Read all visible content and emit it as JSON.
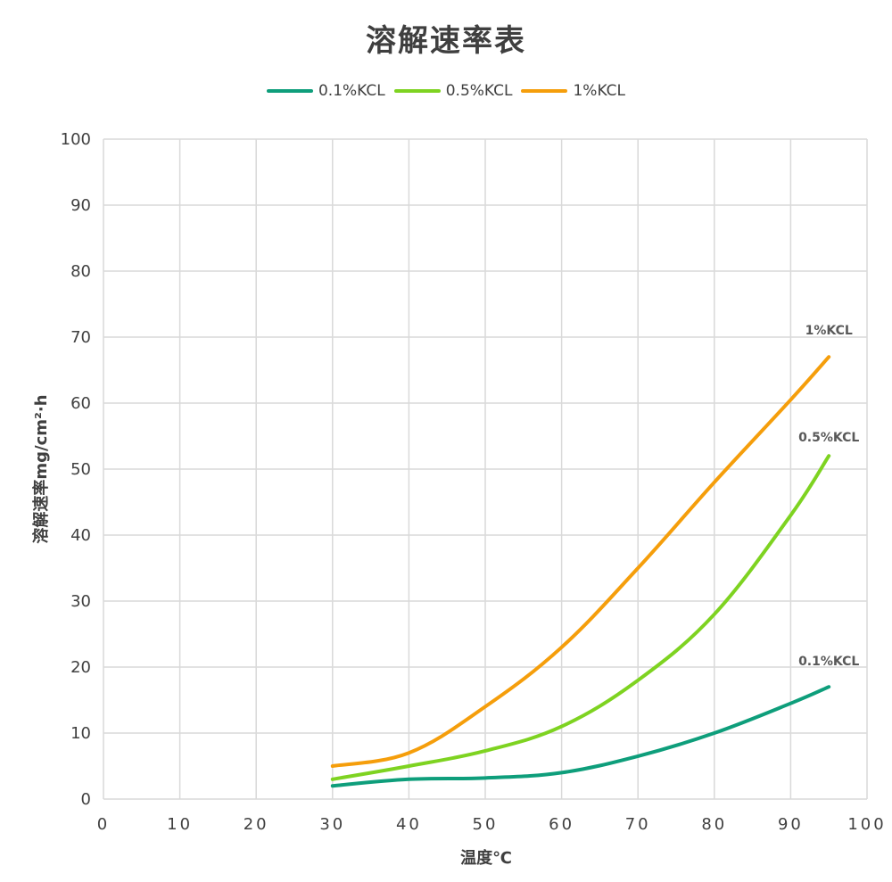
{
  "chart_data": {
    "type": "line",
    "title": "溶解速率表",
    "xlabel": "温度℃",
    "ylabel": "溶解速率mg/cm²·h",
    "xlim": [
      0,
      100
    ],
    "ylim": [
      0,
      100
    ],
    "xticks": [
      0,
      10,
      20,
      30,
      40,
      50,
      60,
      70,
      80,
      90,
      100
    ],
    "yticks": [
      0,
      10,
      20,
      30,
      40,
      50,
      60,
      70,
      80,
      90,
      100
    ],
    "grid": true,
    "legend_position": "top",
    "x": [
      30,
      40,
      50,
      60,
      70,
      80,
      90,
      95
    ],
    "series": [
      {
        "name": "0.1%KCL",
        "color": "#0e9e7b",
        "values": [
          2,
          3,
          3.2,
          4,
          6.5,
          10,
          14.5,
          17
        ],
        "end_label": "0.1%KCL"
      },
      {
        "name": "0.5%KCL",
        "color": "#7ed321",
        "values": [
          3,
          5,
          7.3,
          11,
          18,
          28,
          43,
          52
        ],
        "end_label": "0.5%KCL"
      },
      {
        "name": "1%KCL",
        "color": "#f59e0b",
        "values": [
          5,
          7,
          14,
          23,
          35,
          48,
          60.5,
          67
        ],
        "end_label": "1%KCL"
      }
    ]
  }
}
